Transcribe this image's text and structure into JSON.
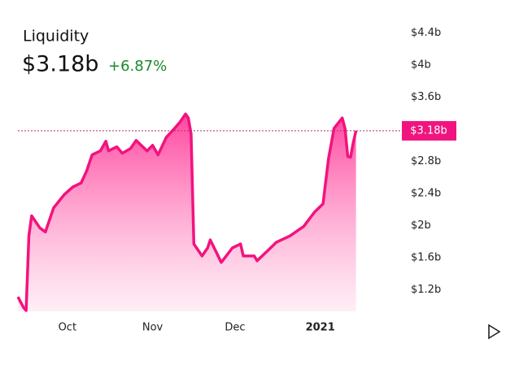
{
  "chart_data": {
    "type": "area",
    "title": "Liquidity",
    "current_value": {
      "value": 3.18,
      "label": "$3.18b"
    },
    "change": "+6.87%",
    "color": "#f2137e",
    "x": [
      0,
      2,
      3,
      4,
      5,
      8,
      10,
      13,
      17,
      20,
      23,
      25,
      27,
      30,
      32,
      33,
      36,
      38,
      41,
      43,
      47,
      49,
      51,
      54,
      57,
      59,
      61,
      62,
      63,
      64,
      67,
      69,
      70,
      74,
      78,
      81,
      82,
      86,
      87,
      91,
      94,
      99,
      104,
      108,
      111,
      113,
      115,
      118,
      119,
      120,
      121,
      122,
      123
    ],
    "values": [
      1.11,
      0.98,
      0.94,
      1.87,
      2.12,
      1.97,
      1.92,
      2.22,
      2.39,
      2.48,
      2.53,
      2.68,
      2.88,
      2.93,
      3.05,
      2.93,
      2.98,
      2.9,
      2.96,
      3.06,
      2.93,
      3.0,
      2.88,
      3.1,
      3.21,
      3.29,
      3.39,
      3.34,
      3.14,
      1.77,
      1.62,
      1.72,
      1.82,
      1.54,
      1.72,
      1.77,
      1.62,
      1.62,
      1.56,
      1.69,
      1.79,
      1.87,
      1.99,
      2.17,
      2.27,
      2.83,
      3.21,
      3.34,
      3.21,
      2.86,
      2.85,
      3.03,
      3.18
    ],
    "xlim": [
      0,
      124
    ],
    "xticks": [
      {
        "value": 18,
        "label": "Oct"
      },
      {
        "value": 49,
        "label": "Nov"
      },
      {
        "value": 79,
        "label": "Dec"
      },
      {
        "value": 110,
        "label": "2021"
      }
    ],
    "ylim": [
      0.93,
      4.81
    ],
    "yticks": [
      {
        "value": 1.2,
        "label": "$1.2b"
      },
      {
        "value": 1.6,
        "label": "$1.6b"
      },
      {
        "value": 2,
        "label": "$2b"
      },
      {
        "value": 2.4,
        "label": "$2.4b"
      },
      {
        "value": 2.8,
        "label": "$2.8b"
      },
      {
        "value": 3.6,
        "label": "$3.6b"
      },
      {
        "value": 4,
        "label": "$4b"
      },
      {
        "value": 4.4,
        "label": "$4.4b"
      }
    ]
  }
}
